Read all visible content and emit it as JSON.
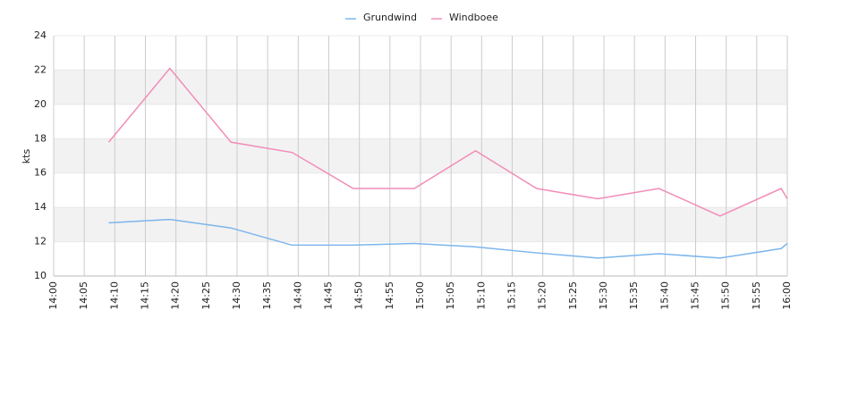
{
  "chart_data": {
    "type": "line",
    "y_label": "kts",
    "x": [
      "14:09",
      "14:19",
      "14:29",
      "14:39",
      "14:49",
      "14:59",
      "15:09",
      "15:19",
      "15:29",
      "15:39",
      "15:49",
      "15:59",
      "16:00"
    ],
    "series": [
      {
        "name": "Grundwind",
        "color": "#7cb5ec",
        "values": [
          13.1,
          13.3,
          12.8,
          11.8,
          11.8,
          11.9,
          11.7,
          11.35,
          11.05,
          11.3,
          11.05,
          11.6,
          11.9
        ]
      },
      {
        "name": "Windboee",
        "color": "#f28cb8",
        "values": [
          17.8,
          22.1,
          17.8,
          17.2,
          15.1,
          15.1,
          17.3,
          15.1,
          14.5,
          15.1,
          13.5,
          15.1,
          14.5
        ]
      }
    ],
    "xlim": [
      "14:00",
      "16:00"
    ],
    "xticks": [
      "14:00",
      "14:05",
      "14:10",
      "14:15",
      "14:20",
      "14:25",
      "14:30",
      "14:35",
      "14:40",
      "14:45",
      "14:50",
      "14:55",
      "15:00",
      "15:05",
      "15:10",
      "15:15",
      "15:20",
      "15:25",
      "15:30",
      "15:35",
      "15:40",
      "15:45",
      "15:50",
      "15:55",
      "16:00"
    ],
    "ylim": [
      10,
      24
    ],
    "yticks": [
      10,
      12,
      14,
      16,
      18,
      20,
      22,
      24
    ],
    "grid": true,
    "legend": "top"
  }
}
